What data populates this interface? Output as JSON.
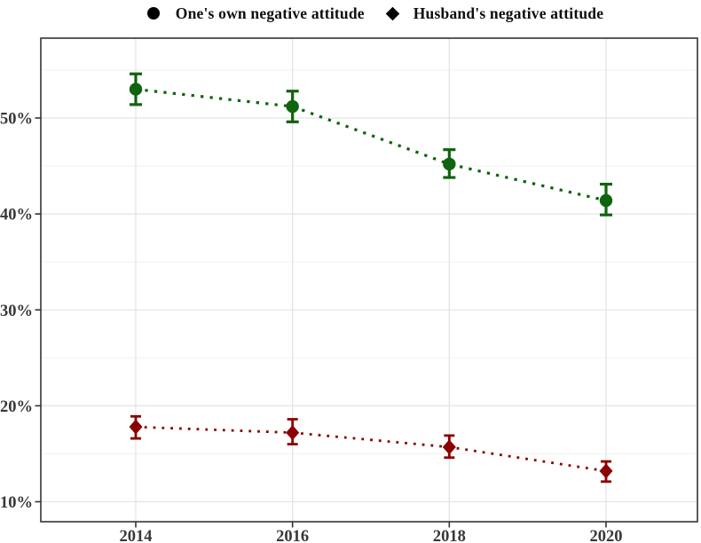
{
  "legend": {
    "items": [
      {
        "label": "One's own negative attitude",
        "marker": "circle",
        "marker_color": "#000000"
      },
      {
        "label": "Husband's negative attitude",
        "marker": "diamond",
        "marker_color": "#000000"
      }
    ],
    "position": "top-center"
  },
  "chart_data": {
    "type": "line",
    "subtype": "point-range with dotted connectors and error bars",
    "x": [
      2014,
      2016,
      2018,
      2020
    ],
    "x_tick_labels": [
      "2014",
      "2016",
      "2018",
      "2020"
    ],
    "y_tick_labels": [
      "10%",
      "20%",
      "30%",
      "40%",
      "50%"
    ],
    "y_major_ticks": [
      10,
      20,
      30,
      40,
      50
    ],
    "y_minor_ticks": [
      15,
      25,
      35,
      45,
      55
    ],
    "ylim": [
      7.8,
      58.4
    ],
    "grid": {
      "major_color": "#e4e4e4",
      "minor_color": "#f2f2f2",
      "vertical_major": true,
      "vertical_minor": false
    },
    "panel_border_color": "#3f3f3f",
    "tick_color": "#333333",
    "title": "",
    "xlabel": "",
    "ylabel": "",
    "legend_position": "top",
    "series": [
      {
        "name": "One's own negative attitude",
        "marker": "circle",
        "color": "#0f640f",
        "line_style": "dotted",
        "values": [
          53.0,
          51.2,
          45.2,
          41.4
        ],
        "ci_low": [
          51.4,
          49.6,
          43.8,
          39.9
        ],
        "ci_high": [
          54.6,
          52.8,
          46.7,
          43.1
        ]
      },
      {
        "name": "Husband's negative attitude",
        "marker": "diamond",
        "color": "#8b0000",
        "line_style": "dotted",
        "values": [
          17.8,
          17.2,
          15.7,
          13.2
        ],
        "ci_low": [
          16.6,
          16.0,
          14.6,
          12.1
        ],
        "ci_high": [
          18.9,
          18.6,
          16.9,
          14.2
        ]
      }
    ]
  }
}
